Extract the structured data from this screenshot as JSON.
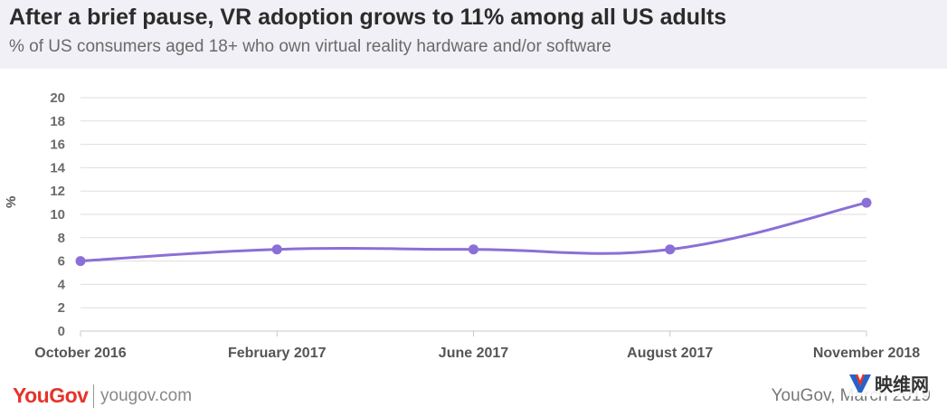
{
  "header": {
    "title": "After a brief pause, VR adoption grows to 11% among all US adults",
    "subtitle": "% of US consumers aged 18+ who own virtual reality hardware and/or software"
  },
  "footer": {
    "logo": "YouGov",
    "url": "yougov.com",
    "source": "YouGov, March 2019",
    "watermark": "映维网"
  },
  "colors": {
    "line": "#8b6fd6",
    "header_bg": "#f1f0f6",
    "brand": "#e6332a"
  },
  "chart_data": {
    "type": "line",
    "title": "After a brief pause, VR adoption grows to 11% among all US adults",
    "subtitle": "% of US consumers aged 18+ who own virtual reality hardware and/or software",
    "ylabel": "%",
    "xlabel": "",
    "categories": [
      "October 2016",
      "February 2017",
      "June 2017",
      "August 2017",
      "November 2018"
    ],
    "series": [
      {
        "values": [
          6,
          7,
          7,
          7,
          11
        ]
      }
    ],
    "ylim": [
      0,
      20
    ],
    "yticks": [
      0,
      2,
      4,
      6,
      8,
      10,
      12,
      14,
      16,
      18,
      20
    ],
    "grid": true,
    "smooth": true
  }
}
